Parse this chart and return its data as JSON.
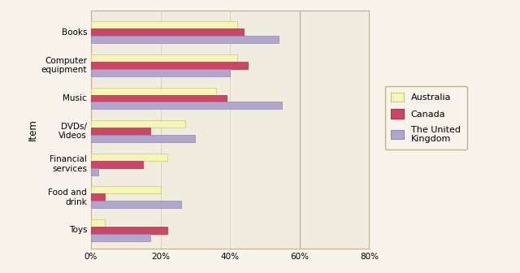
{
  "categories": [
    "Toys",
    "Food and\ndrink",
    "Financial\nservices",
    "DVDs/\nVideos",
    "Music",
    "Computer\nequipment",
    "Books"
  ],
  "australia": [
    4,
    20,
    22,
    27,
    36,
    42,
    42
  ],
  "canada": [
    22,
    4,
    15,
    17,
    39,
    45,
    44
  ],
  "uk": [
    17,
    26,
    2,
    30,
    55,
    40,
    54
  ],
  "color_australia": "#f5f5b8",
  "color_canada": "#cc4466",
  "color_uk": "#b0a8cc",
  "ylabel": "Item",
  "xlabel_ticks": [
    "0%",
    "20%",
    "40%",
    "60%",
    "80%"
  ],
  "xtick_vals": [
    0,
    20,
    40,
    60,
    80
  ],
  "legend_labels": [
    "Australia",
    "Canada",
    "The United\nKingdom"
  ],
  "bar_height": 0.22,
  "xlim": [
    0,
    80
  ],
  "vline_x": 60,
  "bg_color": "#f0ece0",
  "right_bg_color": "#e8e4d8"
}
